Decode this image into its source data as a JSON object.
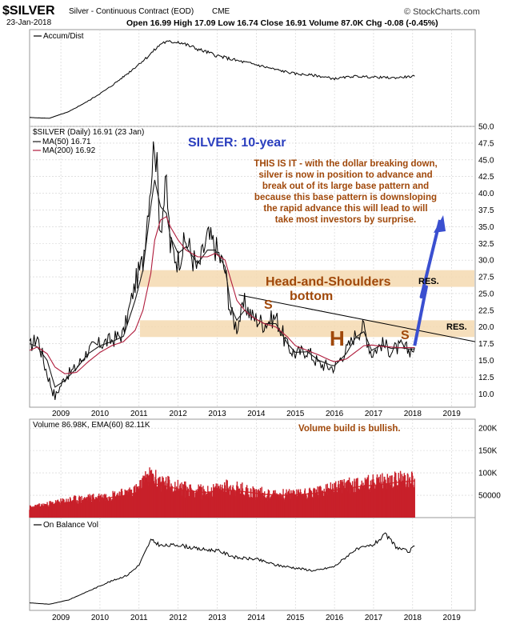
{
  "header": {
    "symbol": "$SILVER",
    "description": "Silver - Continuous Contract (EOD)",
    "exchange": "CME",
    "date": "23-Jan-2018",
    "quote": "Open 16.99  High 17.09  Low 16.74  Close 16.91  Volume 87.0K  Chg -0.08 (-0.45%)",
    "brand": "© StockCharts.com"
  },
  "colors": {
    "price": "#000000",
    "ma50": "#1a1a1a",
    "ma200": "#b01c3c",
    "annotation": "#a0480a",
    "title": "#2b3fbf",
    "band": "#f5d9b0",
    "volume": "#c8202a",
    "arrow": "#3a4fd0"
  },
  "panels": {
    "accum": {
      "label": "Accum/Dist"
    },
    "price": {
      "legend_main": "$SILVER (Daily) 16.91 (23 Jan)",
      "legend_ma50": "MA(50) 16.71",
      "legend_ma200": "MA(200) 16.92",
      "title": "SILVER: 10-year",
      "commentary": [
        "THIS IS IT - with the dollar breaking down,",
        "silver is now in position to advance and",
        "break out of its large base pattern and",
        "because this base pattern is downsloping",
        "the rapid advance this will lead to will",
        "take most investors by surprise."
      ],
      "hs_title": "Head-and-Shoulders",
      "hs_sub": "bottom",
      "res_upper": "RES.",
      "res_lower": "RES.",
      "mark_ls": "S",
      "mark_h": "H",
      "mark_rs": "S"
    },
    "volume": {
      "legend": "Volume 86.98K, EMA(60) 82.11K",
      "note": "Volume build is bullish."
    },
    "obv": {
      "label": "On Balance Vol"
    }
  },
  "chart_data": [
    {
      "type": "line",
      "title": "Accum/ Dist",
      "x": [
        2008.2,
        2008.7,
        2009.2,
        2009.7,
        2010.2,
        2010.7,
        2011.2,
        2011.6,
        2012.0,
        2012.5,
        2013.0,
        2013.5,
        2014.0,
        2014.5,
        2015.0,
        2015.5,
        2016.0,
        2016.5,
        2017.0,
        2017.5,
        2018.05
      ],
      "series": [
        {
          "values": [
            5,
            4,
            12,
            25,
            40,
            58,
            78,
            96,
            97,
            88,
            80,
            74,
            69,
            63,
            58,
            56,
            52,
            55,
            54,
            53,
            55
          ]
        }
      ],
      "ylim": [
        0,
        100
      ],
      "xlim": [
        2008.2,
        2019.6
      ]
    },
    {
      "type": "line",
      "title": "SILVER: 10-year",
      "x": [
        2008.2,
        2008.4,
        2008.65,
        2008.85,
        2009.1,
        2009.4,
        2009.7,
        2010.0,
        2010.3,
        2010.6,
        2010.9,
        2011.1,
        2011.3,
        2011.4,
        2011.55,
        2011.7,
        2011.8,
        2012.0,
        2012.2,
        2012.5,
        2012.75,
        2012.95,
        2013.2,
        2013.35,
        2013.5,
        2013.7,
        2013.9,
        2014.2,
        2014.5,
        2014.8,
        2015.0,
        2015.3,
        2015.6,
        2015.9,
        2016.0,
        2016.3,
        2016.55,
        2016.75,
        2016.95,
        2017.2,
        2017.45,
        2017.7,
        2017.9,
        2018.05
      ],
      "series": [
        {
          "name": "$SILVER (Daily)",
          "values": [
            17.0,
            18.5,
            13.0,
            9.5,
            12.5,
            14.0,
            16.5,
            17.5,
            18.0,
            19.0,
            26.5,
            30.0,
            42.0,
            48.5,
            35.0,
            41.5,
            32.0,
            30.0,
            33.0,
            28.5,
            33.5,
            32.0,
            28.5,
            22.0,
            20.0,
            23.5,
            21.5,
            20.5,
            21.5,
            17.0,
            16.0,
            16.5,
            14.5,
            14.0,
            14.0,
            16.5,
            19.0,
            20.0,
            16.0,
            17.5,
            16.5,
            17.0,
            16.5,
            16.91
          ]
        },
        {
          "name": "MA(50)",
          "values": [
            17.5,
            17.0,
            15.0,
            11.0,
            12.0,
            13.8,
            16.0,
            17.2,
            17.8,
            18.6,
            24.0,
            28.5,
            38.0,
            42.0,
            38.0,
            37.0,
            33.5,
            31.0,
            32.0,
            29.5,
            31.5,
            31.5,
            29.0,
            23.0,
            21.0,
            22.5,
            21.5,
            20.5,
            20.5,
            17.5,
            16.2,
            16.3,
            15.0,
            14.3,
            14.2,
            16.0,
            18.5,
            19.3,
            16.5,
            17.3,
            16.8,
            16.9,
            16.7,
            16.71
          ]
        },
        {
          "name": "MA(200)",
          "values": [
            16.5,
            17.0,
            16.0,
            14.0,
            13.0,
            13.2,
            14.8,
            16.2,
            17.2,
            17.8,
            19.5,
            22.5,
            28.0,
            33.0,
            36.0,
            36.5,
            35.0,
            33.0,
            31.5,
            30.5,
            30.5,
            31.0,
            30.0,
            27.0,
            24.0,
            22.5,
            21.5,
            20.5,
            20.0,
            18.5,
            17.2,
            16.5,
            15.8,
            15.0,
            14.8,
            15.2,
            16.3,
            17.2,
            17.3,
            17.1,
            17.0,
            16.9,
            16.9,
            16.92
          ]
        }
      ],
      "ylim": [
        8.0,
        50.0
      ],
      "y_ticks": [
        "50.0",
        "47.5",
        "45.0",
        "42.5",
        "40.0",
        "37.5",
        "35.0",
        "32.5",
        "30.0",
        "27.5",
        "25.0",
        "22.5",
        "20.0",
        "17.5",
        "15.0",
        "12.5",
        "10.0"
      ],
      "xlim": [
        2008.2,
        2019.6
      ],
      "x_ticks": [
        "2009",
        "2010",
        "2011",
        "2012",
        "2013",
        "2014",
        "2015",
        "2016",
        "2017",
        "2018",
        "2019"
      ],
      "resistance_bands": [
        [
          26.0,
          28.5
        ],
        [
          18.5,
          21.0
        ]
      ],
      "trendline": [
        [
          2013.55,
          24.8
        ],
        [
          2019.6,
          17.8
        ]
      ],
      "projection": [
        [
          2018.05,
          17.2
        ],
        [
          2018.35,
          26.0
        ],
        [
          2018.22,
          24.5
        ],
        [
          2018.7,
          36.0
        ]
      ]
    },
    {
      "type": "bar",
      "title": "Volume",
      "x": [
        2008.2,
        2008.7,
        2009.2,
        2009.7,
        2010.2,
        2010.7,
        2011.0,
        2011.2,
        2011.5,
        2011.8,
        2012.2,
        2012.7,
        2013.2,
        2013.7,
        2014.2,
        2014.7,
        2015.2,
        2015.7,
        2016.2,
        2016.7,
        2017.2,
        2017.7,
        2018.05
      ],
      "series": [
        {
          "name": "Volume",
          "values": [
            22000,
            30000,
            38000,
            42000,
            48000,
            55000,
            65000,
            92000,
            80000,
            72000,
            62000,
            56000,
            68000,
            60000,
            52000,
            50000,
            54000,
            58000,
            70000,
            74000,
            78000,
            84000,
            86980
          ]
        },
        {
          "name": "EMA(60)",
          "values": [
            20000,
            27000,
            34000,
            38000,
            44000,
            50000,
            58000,
            78000,
            74000,
            68000,
            60000,
            56000,
            62000,
            58000,
            52000,
            50000,
            52000,
            56000,
            64000,
            70000,
            74000,
            80000,
            82110
          ]
        }
      ],
      "ylim": [
        0,
        220000
      ],
      "y_ticks": [
        "200K",
        "150K",
        "100K",
        "50000"
      ],
      "xlim": [
        2008.2,
        2019.6
      ]
    },
    {
      "type": "line",
      "title": "On Balance Vol",
      "x": [
        2008.2,
        2008.7,
        2009.2,
        2009.7,
        2010.2,
        2010.7,
        2011.0,
        2011.3,
        2011.6,
        2012.0,
        2012.5,
        2013.0,
        2013.5,
        2014.0,
        2014.5,
        2015.0,
        2015.5,
        2016.0,
        2016.5,
        2017.0,
        2017.3,
        2017.6,
        2017.9,
        2018.05
      ],
      "series": [
        {
          "values": [
            6,
            4,
            10,
            22,
            34,
            44,
            58,
            92,
            84,
            86,
            80,
            78,
            68,
            66,
            58,
            54,
            50,
            56,
            78,
            86,
            100,
            82,
            76,
            84
          ]
        }
      ],
      "ylim": [
        0,
        110
      ],
      "xlim": [
        2008.2,
        2019.6
      ],
      "x_ticks": [
        "2009",
        "2010",
        "2011",
        "2012",
        "2013",
        "2014",
        "2015",
        "2016",
        "2017",
        "2018",
        "2019"
      ]
    }
  ]
}
